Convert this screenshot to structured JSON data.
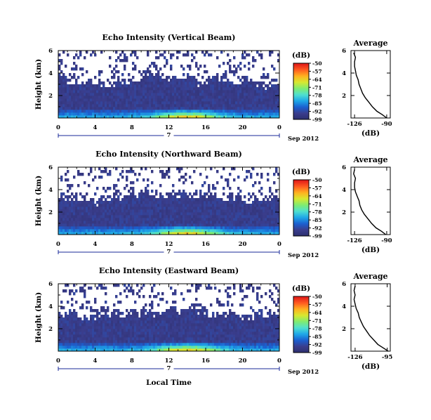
{
  "figure": {
    "xlabel": "Local Time",
    "date_label": "Sep 2012",
    "day_label": "7",
    "colorbar_unit": "(dB)",
    "colormap": [
      "#2c2f6e",
      "#3a3d8c",
      "#1b5fd0",
      "#1fa7e8",
      "#4fe0d0",
      "#7fec70",
      "#d8e830",
      "#ffb020",
      "#ff5a20",
      "#e01818"
    ]
  },
  "chart_data": [
    {
      "type": "heatmap",
      "title": "Echo Intensity (Vertical Beam)",
      "ylabel": "Height (km)",
      "x_ticks": [
        "0",
        "4",
        "8",
        "12",
        "16",
        "20",
        "0"
      ],
      "x_range": [
        0,
        24
      ],
      "y_ticks": [
        "2",
        "4",
        "6"
      ],
      "y_range": [
        0,
        6
      ],
      "colorbar_ticks": [
        "-50",
        "-57",
        "-64",
        "-71",
        "-78",
        "-85",
        "-92",
        "-99"
      ],
      "color_range": [
        -99,
        -50
      ],
      "profile": {
        "title": "Average",
        "xlabel": "(dB)",
        "x_ticks": [
          "-126",
          "-90"
        ],
        "x_range": [
          -130,
          -86
        ],
        "y_ticks": [
          "2",
          "4",
          "6"
        ],
        "height_km": [
          0.0,
          0.3,
          0.6,
          1.0,
          1.4,
          1.8,
          2.2,
          2.6,
          3.0,
          3.4,
          3.8,
          4.2,
          4.6,
          5.0,
          5.4,
          5.8
        ],
        "db": [
          -90,
          -95,
          -101,
          -106,
          -110,
          -114,
          -117,
          -119,
          -121,
          -122,
          -124,
          -125,
          -126,
          -126,
          -125,
          -127
        ]
      }
    },
    {
      "type": "heatmap",
      "title": "Echo Intensity (Northward Beam)",
      "ylabel": "Height (km)",
      "x_ticks": [
        "0",
        "4",
        "8",
        "12",
        "16",
        "20",
        "0"
      ],
      "x_range": [
        0,
        24
      ],
      "y_ticks": [
        "2",
        "4",
        "6"
      ],
      "y_range": [
        0,
        6
      ],
      "colorbar_ticks": [
        "-50",
        "-57",
        "-64",
        "-71",
        "-78",
        "-85",
        "-92",
        "-99"
      ],
      "color_range": [
        -99,
        -50
      ],
      "profile": {
        "title": "Average",
        "xlabel": "(dB)",
        "x_ticks": [
          "-126",
          "-90"
        ],
        "x_range": [
          -130,
          -86
        ],
        "y_ticks": [
          "2",
          "4",
          "6"
        ],
        "height_km": [
          0.0,
          0.3,
          0.6,
          1.0,
          1.4,
          1.8,
          2.2,
          2.6,
          3.0,
          3.4,
          3.8,
          4.2,
          4.6,
          5.0,
          5.4,
          5.8
        ],
        "db": [
          -91,
          -96,
          -102,
          -107,
          -111,
          -115,
          -118,
          -120,
          -121,
          -123,
          -125,
          -126,
          -126,
          -125,
          -127,
          -126
        ]
      }
    },
    {
      "type": "heatmap",
      "title": "Echo Intensity (Eastward Beam)",
      "ylabel": "Height (km)",
      "x_ticks": [
        "0",
        "4",
        "8",
        "12",
        "16",
        "20",
        "0"
      ],
      "x_range": [
        0,
        24
      ],
      "y_ticks": [
        "2",
        "4",
        "6"
      ],
      "y_range": [
        0,
        6
      ],
      "colorbar_ticks": [
        "-50",
        "-57",
        "-64",
        "-71",
        "-78",
        "-85",
        "-92",
        "-99"
      ],
      "color_range": [
        -99,
        -50
      ],
      "profile": {
        "title": "Average",
        "xlabel": "(dB)",
        "x_ticks": [
          "-126",
          "-95"
        ],
        "x_range": [
          -130,
          -92
        ],
        "y_ticks": [
          "2",
          "4",
          "6"
        ],
        "height_km": [
          0.0,
          0.3,
          0.6,
          1.0,
          1.4,
          1.8,
          2.2,
          2.6,
          3.0,
          3.4,
          3.8,
          4.2,
          4.6,
          5.0,
          5.4,
          5.8
        ],
        "db": [
          -94,
          -99,
          -104,
          -108,
          -112,
          -115,
          -118,
          -120,
          -122,
          -123,
          -125,
          -126,
          -127,
          -126,
          -127,
          -126
        ]
      }
    }
  ]
}
